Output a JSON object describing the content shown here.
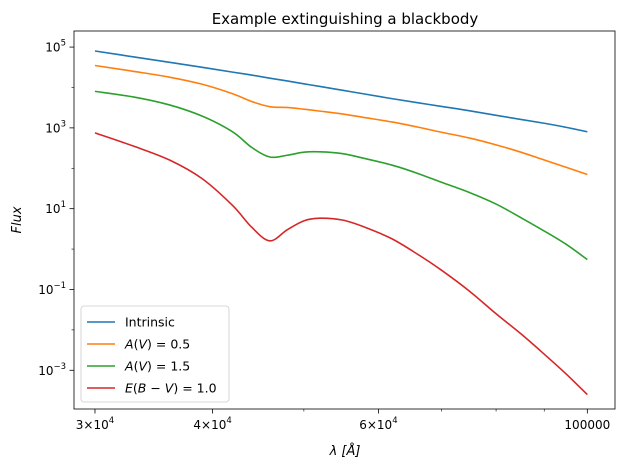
{
  "chart_data": {
    "type": "line",
    "title": "Example extinguishing a blackbody",
    "xlabel": "λ [Å]",
    "ylabel": "Flux",
    "xscale": "log",
    "yscale": "log",
    "xlim": [
      28500,
      107000
    ],
    "ylim": [
      0.00011,
      250000
    ],
    "x_ticks": [
      {
        "value": 30000,
        "base": "3×10",
        "exp": "4"
      },
      {
        "value": 40000,
        "base": "4×10",
        "exp": "4"
      },
      {
        "value": 60000,
        "base": "6×10",
        "exp": "4"
      },
      {
        "value": 100000,
        "base": "100000",
        "exp": ""
      }
    ],
    "y_ticks": [
      {
        "value": 100000,
        "base": "10",
        "exp": "5"
      },
      {
        "value": 1000,
        "base": "10",
        "exp": "3"
      },
      {
        "value": 10,
        "base": "10",
        "exp": "1"
      },
      {
        "value": 0.1,
        "base": "10",
        "exp": "−1"
      },
      {
        "value": 0.001,
        "base": "10",
        "exp": "−3"
      }
    ],
    "grid": false,
    "legend_position": "lower-left",
    "x": [
      30000,
      33000,
      36000,
      39000,
      42000,
      44000,
      46000,
      48000,
      50000,
      52000,
      55000,
      58000,
      62000,
      66000,
      70000,
      75000,
      80000,
      85000,
      90000,
      95000,
      100000
    ],
    "series": [
      {
        "name": "Intrinsic",
        "color": "#1f77b4",
        "values": [
          80000,
          57000,
          42000,
          31500,
          24000,
          20300,
          17000,
          14500,
          12300,
          10600,
          8500,
          6900,
          5300,
          4200,
          3400,
          2650,
          2050,
          1620,
          1300,
          1030,
          800
        ]
      },
      {
        "name": "A(V) = 0.5",
        "label_prefix": "A",
        "label_arg": "V",
        "label_value": "0.5",
        "color": "#ff7f0e",
        "values": [
          35000,
          25000,
          18000,
          12000,
          7000,
          4500,
          3350,
          3200,
          2900,
          2600,
          2200,
          1800,
          1400,
          1050,
          780,
          560,
          380,
          250,
          160,
          105,
          70
        ]
      },
      {
        "name": "A(V) = 1.5",
        "label_prefix": "A",
        "label_arg": "V",
        "label_value": "1.5",
        "color": "#2ca02c",
        "values": [
          8000,
          5800,
          3700,
          1950,
          800,
          330,
          190,
          210,
          250,
          255,
          230,
          175,
          120,
          75,
          45,
          25,
          13,
          6,
          2.8,
          1.3,
          0.55
        ]
      },
      {
        "name": "E(B − V) = 1.0",
        "label_prefix": "E",
        "label_arg": "B − V",
        "label_value": "1.0",
        "color": "#d62728",
        "values": [
          750,
          350,
          160,
          55,
          12,
          3.5,
          1.6,
          3.0,
          5.0,
          5.8,
          5.2,
          3.5,
          1.8,
          0.75,
          0.3,
          0.09,
          0.025,
          0.008,
          0.0025,
          0.0008,
          0.00025
        ]
      }
    ]
  }
}
